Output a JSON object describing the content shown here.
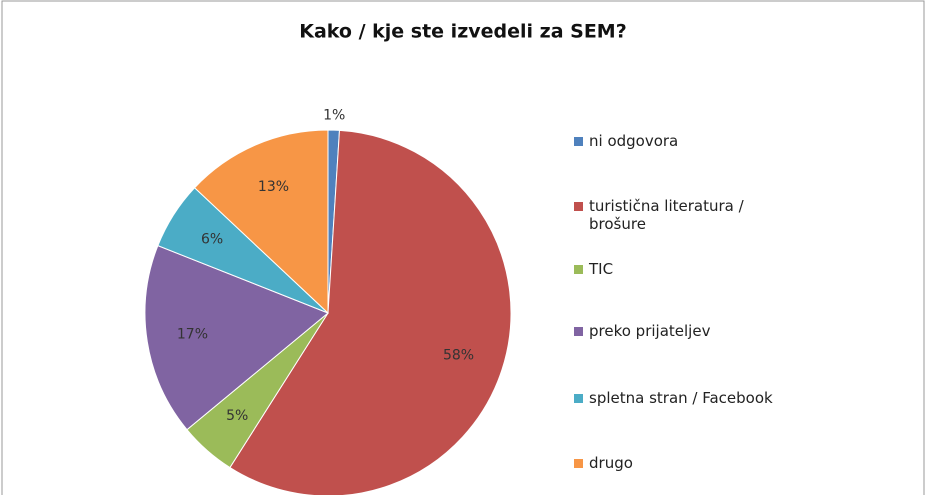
{
  "chart_data": {
    "type": "pie",
    "title": "Kako / kje ste izvedeli za SEM?",
    "categories": [
      "ni odgovora",
      "turistična literatura / brošure",
      "TIC",
      "preko prijateljev",
      "spletna stran / Facebook",
      "drugo"
    ],
    "values": [
      1,
      58,
      5,
      17,
      6,
      13
    ],
    "value_labels": [
      "1%",
      "58%",
      "5%",
      "17%",
      "6%",
      "13%"
    ],
    "colors": [
      "#4f81bd",
      "#c0504d",
      "#9bbb59",
      "#8064a2",
      "#4bacc6",
      "#f79646"
    ],
    "legend": "right"
  }
}
